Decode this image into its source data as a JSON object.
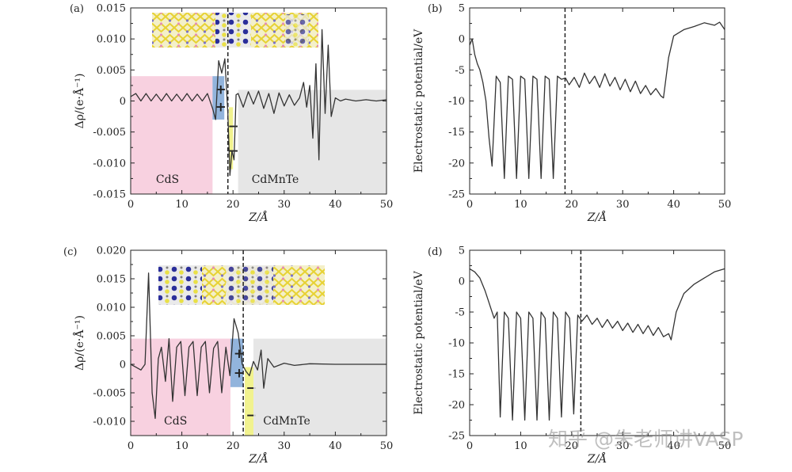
{
  "watermark": "知乎 @朱老师讲VASP",
  "chart_data": [
    {
      "panel": "(a)",
      "type": "line",
      "xlabel": "Z/Å",
      "ylabel": "Δρ/(e·Å⁻¹)",
      "xlim": [
        0,
        50
      ],
      "ylim": [
        -0.015,
        0.015
      ],
      "xticks": [
        0,
        10,
        20,
        30,
        40,
        50
      ],
      "yticks": [
        0.015,
        0.01,
        0.005,
        0,
        -0.005,
        -0.01,
        -0.015
      ],
      "ytick_labels": [
        "0.015",
        "0.010",
        "0.005",
        "0",
        "-0.005",
        "-0.010",
        "-0.015"
      ],
      "interface_z": 19,
      "regions": [
        {
          "label": "CdS",
          "x": [
            0,
            16
          ],
          "y": [
            -0.015,
            0.004
          ],
          "color": "#f7c9da"
        },
        {
          "label": "",
          "x": [
            16,
            18.3
          ],
          "y": [
            -0.003,
            0.004
          ],
          "color": "#7fa7d6",
          "signs": [
            "+",
            "+"
          ]
        },
        {
          "label": "",
          "x": [
            19.2,
            20
          ],
          "y": [
            -0.011,
            -0.001
          ],
          "color": "#eef07a",
          "signs": [
            "−",
            "−"
          ]
        },
        {
          "label": "CdMnTe",
          "x": [
            21,
            50
          ],
          "y": [
            -0.015,
            0.0018
          ],
          "color": "#e2e2e2"
        }
      ],
      "x": [
        0,
        1,
        2,
        3,
        4,
        5,
        6,
        7,
        8,
        9,
        10,
        11,
        12,
        13,
        14,
        15,
        16,
        16.6,
        17.2,
        17.8,
        18.4,
        19,
        19.4,
        19.8,
        20.2,
        20.6,
        21,
        22,
        23,
        24,
        25,
        26,
        27,
        28,
        29,
        30,
        31,
        32,
        33,
        33.8,
        34.4,
        35,
        35.6,
        36.2,
        36.8,
        37.4,
        38,
        38.6,
        39.2,
        40,
        41,
        42,
        44,
        46,
        48,
        50
      ],
      "y": [
        0.0007,
        0.0012,
        0.0,
        0.0012,
        0.0,
        0.0011,
        0.0,
        0.0012,
        0.0,
        0.0011,
        0.0,
        0.0012,
        0.0,
        0.0011,
        0.0,
        0.0012,
        -0.0012,
        -0.003,
        0.0065,
        0.0045,
        0.0068,
        -0.002,
        -0.012,
        -0.008,
        -0.0095,
        0.001,
        0.0012,
        -0.001,
        0.0015,
        -0.0005,
        0.0016,
        -0.0012,
        0.0012,
        -0.002,
        0.0013,
        -0.0008,
        0.001,
        -0.0007,
        0.0005,
        0.003,
        -0.001,
        0.0025,
        -0.006,
        0.006,
        -0.0095,
        0.0115,
        -0.002,
        0.009,
        -0.0025,
        0.0005,
        0.0,
        0.0003,
        0.0,
        0.0002,
        0.0,
        0.0002
      ]
    },
    {
      "panel": "(b)",
      "type": "line",
      "xlabel": "Z/Å",
      "ylabel": "Electrostatic potential/eV",
      "xlim": [
        0,
        50
      ],
      "ylim": [
        -25,
        5
      ],
      "xticks": [
        0,
        10,
        20,
        30,
        40,
        50
      ],
      "yticks": [
        5,
        0,
        -5,
        -10,
        -15,
        -20,
        -25
      ],
      "ytick_labels": [
        "5",
        "0",
        "-5",
        "-10",
        "-15",
        "-20",
        "-25"
      ],
      "interface_z": 18.7,
      "x": [
        0,
        0.5,
        1,
        1.5,
        2,
        2.6,
        3.2,
        3.8,
        4.4,
        5.2,
        6,
        6.8,
        7.6,
        8.4,
        9.2,
        10,
        10.8,
        11.6,
        12.4,
        13.2,
        14,
        14.8,
        15.6,
        16.4,
        17.2,
        18,
        18.8,
        19.5,
        20.5,
        21.5,
        22.5,
        23.5,
        24.5,
        25.5,
        26.5,
        27.5,
        28.5,
        29.5,
        30.5,
        31.5,
        32.5,
        33.5,
        34.5,
        35.5,
        36.5,
        37.5,
        38,
        39,
        40,
        42,
        44,
        46,
        48,
        49,
        50
      ],
      "y": [
        -1,
        0,
        -2.5,
        -4,
        -5,
        -7,
        -10,
        -16,
        -20.5,
        -6,
        -7,
        -22.5,
        -6,
        -6.5,
        -22.5,
        -6,
        -6.5,
        -22.5,
        -6,
        -6.5,
        -22.5,
        -6,
        -6.5,
        -22.5,
        -6,
        -6.5,
        -6.3,
        -7.4,
        -6.2,
        -7.8,
        -5.5,
        -7.2,
        -6,
        -7.8,
        -5.6,
        -7.6,
        -6.2,
        -8.2,
        -6.5,
        -8.5,
        -6.8,
        -8.8,
        -7.5,
        -9,
        -8,
        -9.2,
        -9.5,
        -3,
        0.5,
        1.5,
        2,
        2.6,
        2.2,
        2.7,
        1.5
      ]
    },
    {
      "panel": "(c)",
      "type": "line",
      "xlabel": "Z/Å",
      "ylabel": "Δρ/(e·Å⁻¹)",
      "xlim": [
        0,
        50
      ],
      "ylim": [
        -0.0125,
        0.02
      ],
      "xticks": [
        0,
        10,
        20,
        30,
        40,
        50
      ],
      "yticks": [
        0.02,
        0.015,
        0.01,
        0.005,
        0,
        -0.005,
        -0.01
      ],
      "ytick_labels": [
        "0.020",
        "0.015",
        "0.010",
        "0.005",
        "0",
        "-0.005",
        "-0.010"
      ],
      "interface_z": 22,
      "regions": [
        {
          "label": "CdS",
          "x": [
            0,
            19.5
          ],
          "y": [
            -0.0125,
            0.0045
          ],
          "color": "#f7c9da"
        },
        {
          "label": "",
          "x": [
            19.5,
            22
          ],
          "y": [
            -0.004,
            0.0045
          ],
          "color": "#7fa7d6",
          "signs": [
            "+",
            "+"
          ]
        },
        {
          "label": "",
          "x": [
            22.3,
            24
          ],
          "y": [
            -0.0125,
            -0.0005
          ],
          "color": "#eef07a",
          "signs": [
            "−",
            "−"
          ]
        },
        {
          "label": "CdMnTe",
          "x": [
            24,
            50
          ],
          "y": [
            -0.0125,
            0.0045
          ],
          "color": "#e2e2e2"
        }
      ],
      "x": [
        0,
        1,
        2,
        2.8,
        3.5,
        4.2,
        4.8,
        5.4,
        6,
        6.8,
        7.5,
        8.2,
        9,
        9.8,
        10.6,
        11.4,
        12.2,
        13,
        13.8,
        14.6,
        15.4,
        16.2,
        17,
        17.8,
        18.6,
        19.4,
        20.2,
        21,
        21.8,
        22.5,
        23.2,
        24,
        24.8,
        25.5,
        26,
        26.8,
        28,
        30,
        32,
        35,
        40,
        45,
        50
      ],
      "y": [
        0,
        -0.0005,
        -0.001,
        0.0,
        0.016,
        -0.005,
        -0.0095,
        0.001,
        0.003,
        -0.003,
        0.0045,
        -0.0065,
        0.003,
        0.004,
        -0.0055,
        0.003,
        0.004,
        -0.0055,
        0.003,
        0.004,
        -0.005,
        0.0028,
        0.004,
        -0.005,
        0.003,
        -0.002,
        0.008,
        0.0055,
        0.0,
        -0.0012,
        -0.002,
        0.0005,
        -0.001,
        0.0025,
        -0.0042,
        0.001,
        -0.0005,
        0.0002,
        -0.0002,
        0.0001,
        0.0,
        0.0,
        0.0
      ]
    },
    {
      "panel": "(d)",
      "type": "line",
      "xlabel": "Z/Å",
      "ylabel": "Electrostatic potential/eV",
      "xlim": [
        0,
        50
      ],
      "ylim": [
        -25,
        5
      ],
      "xticks": [
        0,
        10,
        20,
        30,
        40,
        50
      ],
      "yticks": [
        5,
        0,
        -5,
        -10,
        -15,
        -20,
        -25
      ],
      "ytick_labels": [
        "5",
        "0",
        "-5",
        "-10",
        "-15",
        "-20",
        "-25"
      ],
      "interface_z": 21.8,
      "x": [
        0,
        1,
        2,
        3,
        3.6,
        4.2,
        4.8,
        5.4,
        6,
        6.8,
        7.6,
        8.4,
        9.2,
        10,
        10.8,
        11.6,
        12.4,
        13.2,
        14,
        14.8,
        15.6,
        16.4,
        17.2,
        18,
        18.8,
        19.6,
        20.4,
        21.2,
        22,
        23,
        24,
        25,
        26,
        27,
        28,
        29,
        30,
        31,
        32,
        33,
        34,
        35,
        36,
        37,
        38,
        39,
        39.5,
        40.5,
        42,
        44,
        46,
        48,
        50
      ],
      "y": [
        2,
        1.5,
        0.5,
        -1.5,
        -3,
        -4.5,
        -6,
        -5,
        -22,
        -5,
        -6,
        -22.5,
        -5,
        -6,
        -22.5,
        -5,
        -6,
        -22.5,
        -5,
        -6,
        -22.5,
        -5,
        -6,
        -22,
        -5,
        -6,
        -21.5,
        -5.5,
        -6.5,
        -5.5,
        -7,
        -6,
        -7.5,
        -6.2,
        -7.6,
        -6.5,
        -8,
        -6.8,
        -8.3,
        -7,
        -8.5,
        -7.2,
        -8.8,
        -7.5,
        -9,
        -8.5,
        -9.5,
        -5,
        -2,
        -0.5,
        0.5,
        1.5,
        2
      ]
    }
  ]
}
